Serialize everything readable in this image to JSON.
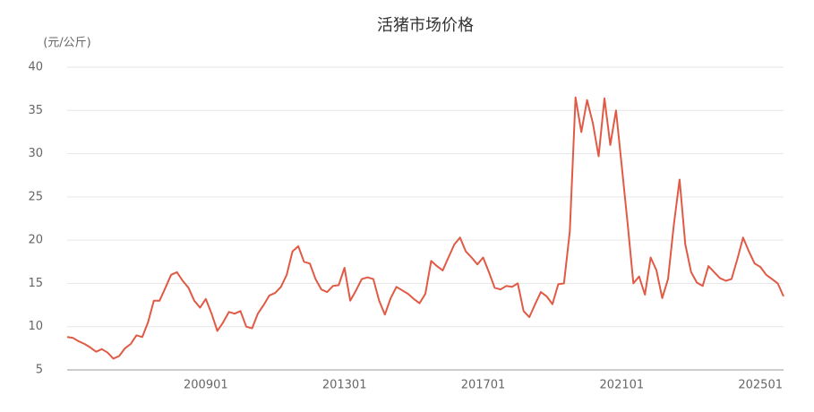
{
  "chart_data": {
    "type": "line",
    "title": "活猪市场价格",
    "y_label": "(元/公斤)",
    "categories": [
      null,
      null,
      null,
      null,
      null,
      null,
      null,
      null,
      null,
      null,
      null,
      null,
      null,
      null,
      null,
      null,
      null,
      null,
      null,
      null,
      null,
      null,
      null,
      null,
      "200901",
      null,
      null,
      null,
      null,
      null,
      null,
      null,
      null,
      null,
      null,
      null,
      null,
      null,
      null,
      null,
      null,
      null,
      null,
      null,
      null,
      null,
      null,
      null,
      "201301",
      null,
      null,
      null,
      null,
      null,
      null,
      null,
      null,
      null,
      null,
      null,
      null,
      null,
      null,
      null,
      null,
      null,
      null,
      null,
      null,
      null,
      null,
      null,
      "201701",
      null,
      null,
      null,
      null,
      null,
      null,
      null,
      null,
      null,
      null,
      null,
      null,
      null,
      null,
      null,
      null,
      null,
      null,
      null,
      null,
      null,
      null,
      null,
      "202101",
      null,
      null,
      null,
      null,
      null,
      null,
      null,
      null,
      null,
      null,
      null,
      null,
      null,
      null,
      null,
      null,
      null,
      null,
      null,
      null,
      null,
      null,
      null,
      "202501",
      null,
      null,
      null,
      null
    ],
    "series": [
      {
        "color": "#e05a45",
        "values": [
          8.8,
          8.7,
          8.3,
          8.0,
          7.6,
          7.1,
          7.4,
          7.0,
          6.3,
          6.6,
          7.5,
          8.0,
          9.0,
          8.8,
          10.5,
          13.0,
          13.0,
          14.5,
          16.0,
          16.3,
          15.3,
          14.5,
          13.0,
          12.2,
          13.2,
          11.5,
          9.5,
          10.5,
          11.7,
          11.5,
          11.8,
          10.0,
          9.8,
          11.5,
          12.5,
          13.6,
          13.9,
          14.6,
          16.0,
          18.7,
          19.3,
          17.5,
          17.3,
          15.5,
          14.3,
          14.0,
          14.7,
          14.8,
          16.8,
          13.0,
          14.2,
          15.5,
          15.7,
          15.5,
          13.0,
          11.4,
          13.3,
          14.6,
          14.2,
          13.8,
          13.2,
          12.7,
          13.8,
          17.6,
          17.0,
          16.5,
          18.0,
          19.5,
          20.3,
          18.7,
          18.0,
          17.2,
          18.0,
          16.3,
          14.5,
          14.3,
          14.7,
          14.6,
          15.0,
          11.8,
          11.1,
          12.6,
          14.0,
          13.5,
          12.6,
          14.9,
          15.0,
          21.0,
          36.5,
          32.5,
          36.2,
          33.5,
          29.7,
          36.4,
          31.0,
          35.0,
          28.5,
          22.0,
          15.0,
          15.8,
          13.7,
          18.0,
          16.5,
          13.3,
          15.5,
          21.7,
          27.0,
          19.5,
          16.3,
          15.1,
          14.7,
          17.0,
          16.3,
          15.6,
          15.3,
          15.5,
          17.8,
          20.3,
          18.7,
          17.3,
          16.9,
          16.0,
          15.5,
          15.0,
          13.5
        ]
      }
    ],
    "ylim": [
      5,
      40
    ],
    "yticks": [
      5,
      10,
      15,
      20,
      25,
      30,
      35,
      40
    ],
    "grid": true
  }
}
